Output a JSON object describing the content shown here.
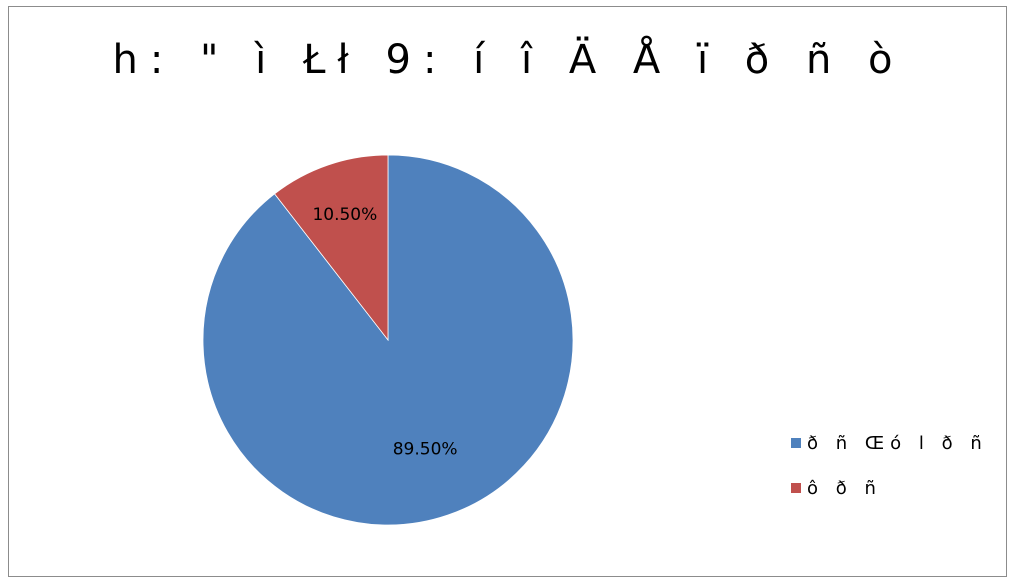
{
  "chart_data": {
    "type": "pie",
    "title": "h: \" ì Łł 9: í î Ä Å ï ð ñ ò",
    "series": [
      {
        "name": "ð ñ Œó l ð ñ",
        "value": 89.5,
        "label": "89.50%",
        "color": "#4f81bd"
      },
      {
        "name": "ô ð ñ",
        "value": 10.5,
        "label": "10.50%",
        "color": "#c0504d"
      }
    ],
    "start_angle_deg": 0,
    "direction": "clockwise",
    "legend_position": "right"
  }
}
